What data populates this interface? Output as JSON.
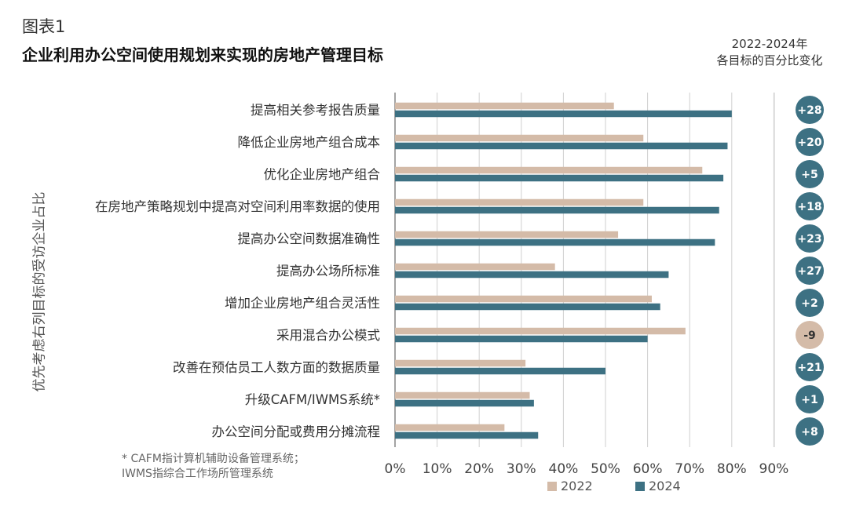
{
  "figure_label": "图表1",
  "title": "企业利用办公空间使用规划来实现的房地产管理目标",
  "change_header": {
    "line1": "2022-2024年",
    "line2": "各目标的百分比变化"
  },
  "footnote": {
    "line1": "* CAFM指计算机辅助设备管理系统；",
    "line2": "IWMS指综合工作场所管理系统"
  },
  "colors": {
    "2022": "#D4BBA8",
    "2024": "#3D7183",
    "badge_positive": "#3D7183",
    "badge_negative": "#D4BBA8"
  },
  "chart_data": {
    "type": "bar",
    "orientation": "horizontal",
    "ylabel": "优先考虑右列目标的受访企业占比",
    "xlim": [
      0,
      90
    ],
    "x_ticks": [
      "0%",
      "10%",
      "20%",
      "30%",
      "40%",
      "50%",
      "60%",
      "70%",
      "80%",
      "90%"
    ],
    "grid": true,
    "legend_position": "bottom",
    "categories": [
      "提高相关参考报告质量",
      "降低企业房地产组合成本",
      "优化企业房地产组合",
      "在房地产策略规划中提高对空间利用率数据的使用",
      "提高办公空间数据准确性",
      "提高办公场所标准",
      "增加企业房地产组合灵活性",
      "采用混合办公模式",
      "改善在预估员工人数方面的数据质量",
      "升级CAFM/IWMS系统*",
      "办公空间分配或费用分摊流程"
    ],
    "series": [
      {
        "name": "2022",
        "values": [
          52,
          59,
          73,
          59,
          53,
          38,
          61,
          69,
          31,
          32,
          26
        ]
      },
      {
        "name": "2024",
        "values": [
          80,
          79,
          78,
          77,
          76,
          65,
          63,
          60,
          50,
          33,
          34
        ]
      }
    ],
    "change_labels": [
      "+28",
      "+20",
      "+5",
      "+18",
      "+23",
      "+27",
      "+2",
      "-9",
      "+21",
      "+1",
      "+8"
    ]
  }
}
